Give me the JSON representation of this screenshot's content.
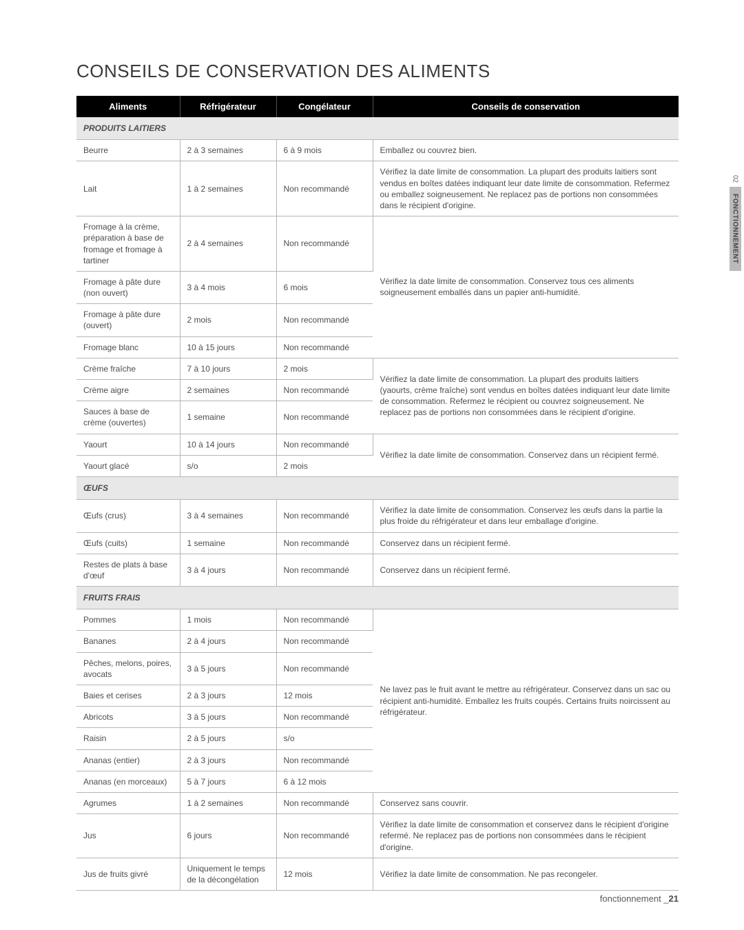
{
  "title": "CONSEILS DE CONSERVATION DES ALIMENTS",
  "side": {
    "num": "02",
    "label": "FONCTIONNEMENT"
  },
  "footer": {
    "text": "fonctionnement _",
    "page": "21"
  },
  "headers": {
    "c1": "Aliments",
    "c2": "Réfrigérateur",
    "c3": "Congélateur",
    "c4": "Conseils de conservation"
  },
  "sections": {
    "laitiers": "PRODUITS LAITIERS",
    "oeufs": "ŒUFS",
    "fruits": "FRUITS FRAIS"
  },
  "r": {
    "beurre": {
      "a": "Beurre",
      "b": "2 à 3 semaines",
      "c": "6 à 9 mois",
      "d": "Emballez ou couvrez bien."
    },
    "lait": {
      "a": "Lait",
      "b": "1 à 2 semaines",
      "c": "Non recommandé",
      "d": "Vérifiez la date limite de consommation. La plupart des produits laitiers sont vendus en boîtes datées indiquant leur date limite de consomma­tion. Refermez ou emballez soigneusement. Ne replacez pas de portions non consommées dans le récipient d'origine."
    },
    "fcreme": {
      "a": "Fromage à la crème, préparation à base de fromage et fromage à tartiner",
      "b": "2 à 4 semaines",
      "c": "Non recommandé"
    },
    "fpate_n": {
      "a": "Fromage à pâte dure (non ouvert)",
      "b": "3 à 4 mois",
      "c": "6 mois",
      "d": "Vérifiez la date limite de consommation. Conservez tous ces aliments soigneusement emballés dans un papier anti-humidité."
    },
    "fpate_o": {
      "a": "Fromage à pâte dure (ouvert)",
      "b": "2 mois",
      "c": "Non recommandé"
    },
    "fblanc": {
      "a": "Fromage blanc",
      "b": "10 à 15 jours",
      "c": "Non recommandé"
    },
    "cfraiche": {
      "a": "Crème fraîche",
      "b": "7 à 10 jours",
      "c": "2 mois",
      "d": "Vérifiez la date limite de consommation. La plupart des produits laitiers (yaourts, crème fraîche) sont vendus en boîtes datées indiquant leur date limite de consommation. Refermez le récipient ou couvrez soigneuse­ment. Ne replacez pas de portions non consommées dans le récipient d'origine."
    },
    "caigre": {
      "a": "Crème aigre",
      "b": "2 semaines",
      "c": "Non recommandé"
    },
    "sauces": {
      "a": "Sauces à base de crème (ouvertes)",
      "b": "1 semaine",
      "c": "Non recommandé"
    },
    "yaourt": {
      "a": "Yaourt",
      "b": "10 à 14 jours",
      "c": "Non recommandé",
      "d": "Vérifiez la date limite de consommation. Conservez dans un récipient fermé."
    },
    "yglace": {
      "a": "Yaourt glacé",
      "b": "s/o",
      "c": "2 mois"
    },
    "ocrus": {
      "a": "Œufs (crus)",
      "b": "3 à 4 semaines",
      "c": "Non recommandé",
      "d": "Vérifiez la date limite de consommation. Conservez les œufs dans la partie la plus froide du réfrigérateur et dans leur emballage d'origine."
    },
    "ocuits": {
      "a": "Œufs (cuits)",
      "b": "1 semaine",
      "c": "Non recommandé",
      "d": "Conservez dans un récipient fermé."
    },
    "orestes": {
      "a": "Restes de plats à base d'œuf",
      "b": "3 à 4 jours",
      "c": "Non recommandé",
      "d": "Conservez dans un récipient fermé."
    },
    "pommes": {
      "a": "Pommes",
      "b": "1 mois",
      "c": "Non recommandé",
      "d": "Ne lavez pas le fruit avant le mettre au réfrigérateur. Conservez dans un sac ou récipient anti-humidité. Emballez les fruits coupés. Certains fruits noircissent au réfrigérateur."
    },
    "bananes": {
      "a": "Bananes",
      "b": "2 à 4 jours",
      "c": "Non recommandé"
    },
    "peches": {
      "a": "Pêches, melons, poires, avocats",
      "b": "3 à 5 jours",
      "c": "Non recommandé"
    },
    "baies": {
      "a": "Baies et cerises",
      "b": "2 à 3 jours",
      "c": "12 mois"
    },
    "abricots": {
      "a": "Abricots",
      "b": "3 à 5 jours",
      "c": "Non recommandé"
    },
    "raisin": {
      "a": "Raisin",
      "b": "2 à 5 jours",
      "c": "s/o"
    },
    "ananas_e": {
      "a": "Ananas (entier)",
      "b": "2 à 3 jours",
      "c": "Non recommandé"
    },
    "ananas_m": {
      "a": "Ananas (en morceaux)",
      "b": "5 à 7 jours",
      "c": "6 à 12 mois"
    },
    "agrumes": {
      "a": "Agrumes",
      "b": "1 à 2 semaines",
      "c": "Non recommandé",
      "d": "Conservez sans couvrir."
    },
    "jus": {
      "a": "Jus",
      "b": "6 jours",
      "c": "Non recommandé",
      "d": "Vérifiez la date limite de consommation et conservez dans le récipient d'origine refermé. Ne replacez pas de portions non consommées dans le récipient d'origine."
    },
    "jusgivre": {
      "a": "Jus de fruits givré",
      "b": "Uniquement le temps de la décon­gélation",
      "c": "12 mois",
      "d": "Vérifiez la date limite de consommation. Ne pas recongeler."
    }
  }
}
